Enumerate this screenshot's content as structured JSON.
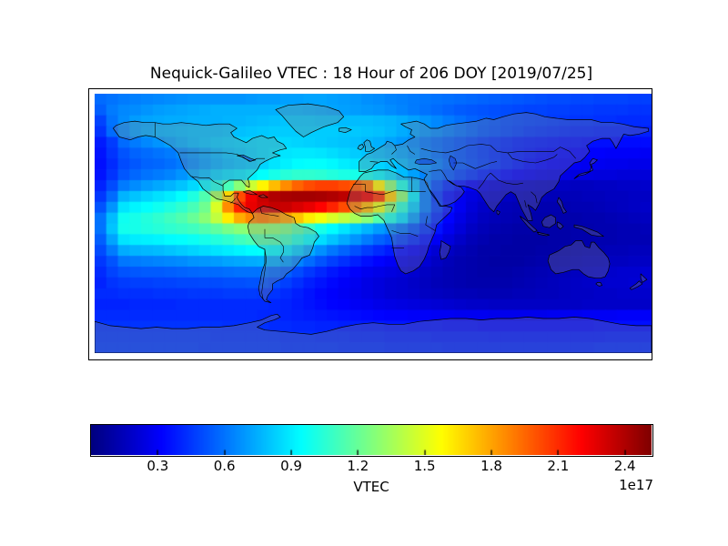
{
  "figure": {
    "title": "Nequick-Galileo VTEC : 18 Hour of 206 DOY [2019/07/25]"
  },
  "colorbar": {
    "label": "VTEC",
    "offset_text": "1e17",
    "tick_labels": [
      "0.3",
      "0.6",
      "0.9",
      "1.2",
      "1.5",
      "1.8",
      "2.1",
      "2.4"
    ],
    "tick_values": [
      0.3,
      0.6,
      0.9,
      1.2,
      1.5,
      1.8,
      2.1,
      2.4
    ],
    "vmin": 0,
    "vmax": 2.52,
    "colormap": "jet"
  },
  "chart_data": {
    "type": "heatmap",
    "title": "Nequick-Galileo VTEC : 18 Hour of 206 DOY [2019/07/25]",
    "colormap": "jet",
    "vmin": 0,
    "vmax": 2.52,
    "value_scale": "1e17",
    "lon_range": [
      -180,
      180
    ],
    "lat_range": [
      90,
      -90
    ],
    "grid_deg": 7.5,
    "colorbar_label": "VTEC",
    "values_1e17": [
      [
        0.58,
        0.6,
        0.62,
        0.63,
        0.64,
        0.65,
        0.66,
        0.67,
        0.68,
        0.68,
        0.68,
        0.68,
        0.68,
        0.69,
        0.7,
        0.7,
        0.71,
        0.71,
        0.72,
        0.72,
        0.71,
        0.7,
        0.69,
        0.67,
        0.66,
        0.64,
        0.63,
        0.62,
        0.61,
        0.6,
        0.59,
        0.58,
        0.57,
        0.56,
        0.55,
        0.54,
        0.53,
        0.52,
        0.51,
        0.5,
        0.5,
        0.49,
        0.49,
        0.48,
        0.48,
        0.48,
        0.47,
        0.47
      ],
      [
        0.55,
        0.62,
        0.65,
        0.66,
        0.68,
        0.7,
        0.71,
        0.72,
        0.73,
        0.74,
        0.75,
        0.75,
        0.75,
        0.75,
        0.75,
        0.75,
        0.75,
        0.75,
        0.74,
        0.73,
        0.72,
        0.71,
        0.7,
        0.69,
        0.68,
        0.66,
        0.64,
        0.62,
        0.6,
        0.58,
        0.56,
        0.54,
        0.53,
        0.52,
        0.51,
        0.5,
        0.49,
        0.48,
        0.48,
        0.47,
        0.47,
        0.46,
        0.46,
        0.45,
        0.45,
        0.45,
        0.44,
        0.44
      ],
      [
        0.48,
        0.6,
        0.66,
        0.7,
        0.72,
        0.73,
        0.74,
        0.74,
        0.75,
        0.75,
        0.75,
        0.76,
        0.76,
        0.77,
        0.78,
        0.79,
        0.8,
        0.8,
        0.8,
        0.79,
        0.79,
        0.78,
        0.78,
        0.78,
        0.77,
        0.76,
        0.74,
        0.71,
        0.68,
        0.65,
        0.62,
        0.59,
        0.56,
        0.54,
        0.52,
        0.5,
        0.49,
        0.48,
        0.47,
        0.46,
        0.45,
        0.44,
        0.44,
        0.43,
        0.43,
        0.42,
        0.42,
        0.42
      ],
      [
        0.44,
        0.58,
        0.65,
        0.7,
        0.73,
        0.75,
        0.76,
        0.77,
        0.78,
        0.78,
        0.78,
        0.79,
        0.79,
        0.8,
        0.81,
        0.82,
        0.82,
        0.82,
        0.82,
        0.82,
        0.82,
        0.81,
        0.81,
        0.8,
        0.79,
        0.77,
        0.74,
        0.71,
        0.68,
        0.65,
        0.62,
        0.59,
        0.56,
        0.53,
        0.51,
        0.49,
        0.47,
        0.45,
        0.44,
        0.43,
        0.42,
        0.41,
        0.41,
        0.4,
        0.4,
        0.4,
        0.39,
        0.39
      ],
      [
        0.38,
        0.46,
        0.58,
        0.62,
        0.65,
        0.68,
        0.71,
        0.74,
        0.77,
        0.79,
        0.81,
        0.82,
        0.83,
        0.84,
        0.85,
        0.85,
        0.85,
        0.84,
        0.83,
        0.82,
        0.81,
        0.8,
        0.79,
        0.77,
        0.75,
        0.72,
        0.69,
        0.65,
        0.61,
        0.58,
        0.55,
        0.52,
        0.49,
        0.46,
        0.44,
        0.42,
        0.4,
        0.39,
        0.38,
        0.37,
        0.36,
        0.36,
        0.35,
        0.35,
        0.35,
        0.34,
        0.34,
        0.34
      ],
      [
        0.36,
        0.44,
        0.52,
        0.56,
        0.58,
        0.6,
        0.62,
        0.65,
        0.68,
        0.72,
        0.76,
        0.79,
        0.81,
        0.83,
        0.85,
        0.87,
        0.88,
        0.89,
        0.89,
        0.88,
        0.86,
        0.84,
        0.82,
        0.8,
        0.78,
        0.75,
        0.72,
        0.68,
        0.63,
        0.59,
        0.55,
        0.52,
        0.49,
        0.46,
        0.43,
        0.41,
        0.39,
        0.37,
        0.35,
        0.34,
        0.33,
        0.32,
        0.31,
        0.31,
        0.3,
        0.3,
        0.3,
        0.29
      ],
      [
        0.35,
        0.42,
        0.5,
        0.53,
        0.56,
        0.57,
        0.59,
        0.62,
        0.66,
        0.7,
        0.74,
        0.77,
        0.79,
        0.81,
        0.84,
        0.88,
        0.91,
        0.94,
        0.95,
        0.95,
        0.93,
        0.9,
        0.88,
        0.86,
        0.84,
        0.81,
        0.77,
        0.72,
        0.67,
        0.62,
        0.57,
        0.53,
        0.5,
        0.47,
        0.44,
        0.41,
        0.38,
        0.35,
        0.33,
        0.31,
        0.3,
        0.29,
        0.28,
        0.28,
        0.27,
        0.27,
        0.26,
        0.26
      ],
      [
        0.36,
        0.44,
        0.53,
        0.57,
        0.6,
        0.62,
        0.64,
        0.68,
        0.73,
        0.78,
        0.83,
        0.86,
        0.88,
        0.91,
        0.95,
        1.0,
        1.04,
        1.06,
        1.06,
        1.05,
        1.03,
        1.01,
        1.0,
        0.98,
        0.92,
        0.86,
        0.78,
        0.71,
        0.64,
        0.58,
        0.53,
        0.48,
        0.44,
        0.4,
        0.37,
        0.34,
        0.31,
        0.29,
        0.27,
        0.26,
        0.25,
        0.24,
        0.24,
        0.23,
        0.23,
        0.22,
        0.22,
        0.22
      ],
      [
        0.4,
        0.5,
        0.62,
        0.66,
        0.7,
        0.73,
        0.76,
        0.8,
        0.85,
        0.92,
        1.0,
        1.12,
        1.28,
        1.45,
        1.6,
        1.74,
        1.86,
        1.96,
        2.02,
        2.05,
        2.05,
        2.02,
        1.98,
        1.9,
        1.6,
        1.28,
        1.0,
        0.78,
        0.62,
        0.5,
        0.42,
        0.36,
        0.3,
        0.26,
        0.23,
        0.21,
        0.2,
        0.19,
        0.18,
        0.17,
        0.17,
        0.16,
        0.16,
        0.17,
        0.17,
        0.18,
        0.18,
        0.19
      ],
      [
        0.45,
        0.58,
        0.76,
        0.8,
        0.84,
        0.87,
        0.9,
        0.95,
        1.02,
        1.14,
        1.34,
        1.68,
        2.02,
        2.24,
        2.34,
        2.4,
        2.42,
        2.43,
        2.43,
        2.42,
        2.4,
        2.37,
        2.32,
        2.25,
        2.08,
        1.7,
        1.28,
        0.9,
        0.62,
        0.45,
        0.35,
        0.28,
        0.24,
        0.21,
        0.19,
        0.17,
        0.16,
        0.15,
        0.15,
        0.14,
        0.14,
        0.14,
        0.15,
        0.15,
        0.16,
        0.16,
        0.17,
        0.17
      ],
      [
        0.52,
        0.68,
        0.88,
        0.92,
        0.95,
        0.98,
        1.02,
        1.06,
        1.12,
        1.22,
        1.48,
        1.86,
        2.12,
        2.26,
        2.32,
        2.35,
        2.34,
        2.3,
        2.26,
        2.2,
        2.12,
        2.02,
        1.9,
        1.75,
        1.52,
        1.28,
        1.04,
        0.82,
        0.62,
        0.47,
        0.36,
        0.28,
        0.22,
        0.18,
        0.16,
        0.14,
        0.13,
        0.13,
        0.12,
        0.12,
        0.12,
        0.13,
        0.13,
        0.14,
        0.15,
        0.16,
        0.17,
        0.18
      ],
      [
        0.6,
        0.78,
        0.98,
        1.0,
        1.03,
        1.06,
        1.1,
        1.14,
        1.2,
        1.28,
        1.42,
        1.62,
        1.78,
        1.87,
        1.9,
        1.86,
        1.8,
        1.72,
        1.62,
        1.55,
        1.48,
        1.42,
        1.36,
        1.28,
        1.15,
        1.0,
        0.86,
        0.7,
        0.54,
        0.42,
        0.32,
        0.25,
        0.2,
        0.16,
        0.14,
        0.13,
        0.12,
        0.11,
        0.11,
        0.11,
        0.11,
        0.11,
        0.12,
        0.12,
        0.13,
        0.14,
        0.15,
        0.16
      ],
      [
        0.6,
        0.8,
        0.99,
        1.0,
        1.02,
        1.04,
        1.06,
        1.08,
        1.1,
        1.14,
        1.18,
        1.24,
        1.28,
        1.3,
        1.3,
        1.28,
        1.24,
        1.16,
        1.08,
        1.0,
        0.94,
        0.88,
        0.82,
        0.76,
        0.7,
        0.65,
        0.6,
        0.52,
        0.44,
        0.36,
        0.28,
        0.22,
        0.17,
        0.14,
        0.12,
        0.11,
        0.1,
        0.1,
        0.1,
        0.1,
        0.1,
        0.11,
        0.11,
        0.12,
        0.12,
        0.13,
        0.13,
        0.14
      ],
      [
        0.55,
        0.72,
        0.88,
        0.9,
        0.91,
        0.92,
        0.94,
        0.95,
        0.97,
        1.0,
        1.03,
        1.06,
        1.1,
        1.13,
        1.15,
        1.14,
        1.1,
        1.02,
        0.94,
        0.86,
        0.8,
        0.74,
        0.68,
        0.62,
        0.56,
        0.52,
        0.47,
        0.42,
        0.36,
        0.29,
        0.23,
        0.18,
        0.14,
        0.12,
        0.1,
        0.1,
        0.09,
        0.09,
        0.09,
        0.1,
        0.1,
        0.11,
        0.11,
        0.12,
        0.12,
        0.13,
        0.13,
        0.13
      ],
      [
        0.5,
        0.62,
        0.74,
        0.76,
        0.77,
        0.78,
        0.8,
        0.82,
        0.84,
        0.86,
        0.88,
        0.9,
        0.92,
        0.94,
        0.95,
        0.93,
        0.89,
        0.82,
        0.74,
        0.67,
        0.61,
        0.56,
        0.51,
        0.46,
        0.42,
        0.38,
        0.34,
        0.3,
        0.26,
        0.21,
        0.17,
        0.14,
        0.12,
        0.1,
        0.1,
        0.09,
        0.09,
        0.09,
        0.1,
        0.1,
        0.11,
        0.12,
        0.13,
        0.13,
        0.14,
        0.14,
        0.15,
        0.15
      ],
      [
        0.45,
        0.52,
        0.61,
        0.62,
        0.63,
        0.64,
        0.65,
        0.66,
        0.68,
        0.69,
        0.7,
        0.72,
        0.73,
        0.74,
        0.75,
        0.74,
        0.7,
        0.64,
        0.58,
        0.52,
        0.47,
        0.43,
        0.39,
        0.35,
        0.32,
        0.29,
        0.27,
        0.24,
        0.21,
        0.17,
        0.14,
        0.12,
        0.11,
        0.1,
        0.09,
        0.09,
        0.09,
        0.1,
        0.11,
        0.12,
        0.13,
        0.14,
        0.15,
        0.15,
        0.16,
        0.16,
        0.17,
        0.17
      ],
      [
        0.42,
        0.48,
        0.52,
        0.53,
        0.54,
        0.54,
        0.55,
        0.56,
        0.57,
        0.58,
        0.58,
        0.59,
        0.6,
        0.6,
        0.6,
        0.58,
        0.55,
        0.5,
        0.45,
        0.41,
        0.37,
        0.34,
        0.31,
        0.28,
        0.26,
        0.24,
        0.22,
        0.2,
        0.17,
        0.15,
        0.13,
        0.12,
        0.11,
        0.1,
        0.1,
        0.1,
        0.11,
        0.12,
        0.13,
        0.14,
        0.15,
        0.16,
        0.17,
        0.18,
        0.19,
        0.2,
        0.2,
        0.21
      ],
      [
        0.4,
        0.44,
        0.46,
        0.47,
        0.47,
        0.48,
        0.48,
        0.49,
        0.49,
        0.5,
        0.5,
        0.51,
        0.51,
        0.52,
        0.52,
        0.5,
        0.47,
        0.43,
        0.39,
        0.36,
        0.33,
        0.3,
        0.28,
        0.25,
        0.23,
        0.21,
        0.2,
        0.18,
        0.16,
        0.14,
        0.13,
        0.12,
        0.11,
        0.11,
        0.11,
        0.11,
        0.12,
        0.13,
        0.14,
        0.15,
        0.16,
        0.17,
        0.18,
        0.19,
        0.2,
        0.2,
        0.21,
        0.21
      ],
      [
        0.42,
        0.42,
        0.43,
        0.43,
        0.43,
        0.44,
        0.44,
        0.44,
        0.45,
        0.45,
        0.45,
        0.46,
        0.46,
        0.46,
        0.45,
        0.44,
        0.42,
        0.39,
        0.36,
        0.33,
        0.31,
        0.29,
        0.27,
        0.25,
        0.23,
        0.21,
        0.2,
        0.19,
        0.17,
        0.16,
        0.15,
        0.14,
        0.14,
        0.13,
        0.13,
        0.13,
        0.14,
        0.14,
        0.15,
        0.15,
        0.16,
        0.17,
        0.17,
        0.18,
        0.18,
        0.19,
        0.19,
        0.19
      ],
      [
        0.4,
        0.4,
        0.4,
        0.41,
        0.41,
        0.41,
        0.41,
        0.42,
        0.42,
        0.42,
        0.42,
        0.42,
        0.42,
        0.42,
        0.42,
        0.41,
        0.4,
        0.38,
        0.36,
        0.34,
        0.32,
        0.31,
        0.29,
        0.28,
        0.26,
        0.25,
        0.24,
        0.23,
        0.22,
        0.21,
        0.2,
        0.19,
        0.18,
        0.18,
        0.17,
        0.17,
        0.17,
        0.17,
        0.17,
        0.17,
        0.17,
        0.17,
        0.18,
        0.18,
        0.18,
        0.18,
        0.18,
        0.18
      ],
      [
        0.42,
        0.42,
        0.42,
        0.42,
        0.42,
        0.42,
        0.42,
        0.42,
        0.42,
        0.42,
        0.42,
        0.42,
        0.42,
        0.42,
        0.41,
        0.41,
        0.4,
        0.39,
        0.38,
        0.37,
        0.36,
        0.35,
        0.34,
        0.33,
        0.32,
        0.31,
        0.31,
        0.3,
        0.3,
        0.29,
        0.29,
        0.28,
        0.28,
        0.28,
        0.27,
        0.27,
        0.27,
        0.27,
        0.27,
        0.28,
        0.28,
        0.28,
        0.29,
        0.29,
        0.29,
        0.3,
        0.3,
        0.3
      ],
      [
        0.44,
        0.44,
        0.44,
        0.44,
        0.44,
        0.44,
        0.44,
        0.44,
        0.44,
        0.44,
        0.44,
        0.43,
        0.43,
        0.43,
        0.43,
        0.42,
        0.42,
        0.41,
        0.41,
        0.4,
        0.4,
        0.39,
        0.39,
        0.38,
        0.38,
        0.37,
        0.37,
        0.36,
        0.36,
        0.36,
        0.35,
        0.35,
        0.35,
        0.34,
        0.34,
        0.34,
        0.34,
        0.34,
        0.34,
        0.34,
        0.34,
        0.34,
        0.34,
        0.35,
        0.35,
        0.35,
        0.35,
        0.35
      ],
      [
        0.45,
        0.45,
        0.45,
        0.45,
        0.45,
        0.45,
        0.45,
        0.45,
        0.45,
        0.45,
        0.44,
        0.44,
        0.44,
        0.44,
        0.44,
        0.44,
        0.43,
        0.43,
        0.43,
        0.42,
        0.42,
        0.42,
        0.41,
        0.41,
        0.41,
        0.4,
        0.4,
        0.4,
        0.4,
        0.39,
        0.39,
        0.39,
        0.39,
        0.39,
        0.38,
        0.38,
        0.38,
        0.38,
        0.38,
        0.38,
        0.38,
        0.38,
        0.38,
        0.38,
        0.39,
        0.39,
        0.39,
        0.39
      ],
      [
        0.46,
        0.46,
        0.46,
        0.46,
        0.46,
        0.46,
        0.46,
        0.46,
        0.46,
        0.45,
        0.45,
        0.45,
        0.45,
        0.45,
        0.45,
        0.45,
        0.44,
        0.44,
        0.44,
        0.44,
        0.44,
        0.43,
        0.43,
        0.43,
        0.43,
        0.42,
        0.42,
        0.42,
        0.42,
        0.42,
        0.41,
        0.41,
        0.41,
        0.41,
        0.41,
        0.41,
        0.41,
        0.41,
        0.41,
        0.41,
        0.41,
        0.41,
        0.41,
        0.42,
        0.42,
        0.42,
        0.42,
        0.42
      ]
    ]
  }
}
